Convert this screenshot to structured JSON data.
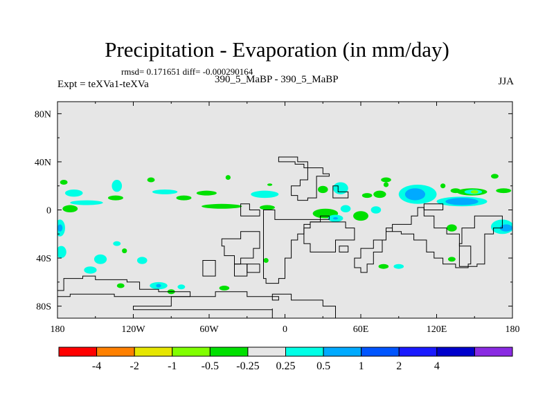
{
  "title": "Precipitation - Evaporation (in mm/day)",
  "stats_line": "rmsd= 0.171651 diff= -0.000290164",
  "experiment_label": "Expt = teXVa1-teXVa",
  "comparison_label": "390_5_MaBP - 390_5_MaBP",
  "season_label": "JJA",
  "chart_data": {
    "type": "map",
    "projection": "cylindrical-equidistant",
    "x_range_deg": [
      -180,
      180
    ],
    "y_range_deg": [
      -90,
      90
    ],
    "x_ticks": [
      {
        "value": -180,
        "label": "180"
      },
      {
        "value": -120,
        "label": "120W"
      },
      {
        "value": -60,
        "label": "60W"
      },
      {
        "value": 0,
        "label": "0"
      },
      {
        "value": 60,
        "label": "60E"
      },
      {
        "value": 120,
        "label": "120E"
      },
      {
        "value": 180,
        "label": "180"
      }
    ],
    "y_ticks": [
      {
        "value": 80,
        "label": "80N"
      },
      {
        "value": 40,
        "label": "40N"
      },
      {
        "value": 0,
        "label": "0"
      },
      {
        "value": -40,
        "label": "40S"
      },
      {
        "value": -80,
        "label": "80S"
      }
    ],
    "colorbar": {
      "colors": [
        "#ff0000",
        "#ff8000",
        "#e6e600",
        "#80ff00",
        "#00e000",
        "#e6e6e6",
        "#00ffe6",
        "#00aaff",
        "#0055ff",
        "#1a1aff",
        "#0000cc",
        "#8a2be2"
      ],
      "labels": [
        "-4",
        "-2",
        "-1",
        "-0.5",
        "-0.25",
        "0.25",
        "0.5",
        "1",
        "2",
        "4"
      ]
    },
    "filled_regions": [
      {
        "level": "-0.5..-0.25",
        "lon": -175,
        "lat": 23,
        "rx": 3,
        "ry": 2
      },
      {
        "level": "0.25..0.5",
        "lon": -167,
        "lat": 14,
        "rx": 7,
        "ry": 3
      },
      {
        "level": "0.25..0.5",
        "lon": -133,
        "lat": 20,
        "rx": 4,
        "ry": 5
      },
      {
        "level": "0.25..0.5",
        "lon": -95,
        "lat": 15,
        "rx": 10,
        "ry": 2
      },
      {
        "level": "0.25..0.5",
        "lon": -157,
        "lat": 6,
        "rx": 13,
        "ry": 2
      },
      {
        "level": "-0.5..-0.25",
        "lon": -134,
        "lat": 10,
        "rx": 6,
        "ry": 2
      },
      {
        "level": "-0.5..-0.25",
        "lon": -80,
        "lat": 10,
        "rx": 6,
        "ry": 2
      },
      {
        "level": "-0.5..-0.25",
        "lon": -62,
        "lat": 14,
        "rx": 8,
        "ry": 2
      },
      {
        "level": "-0.5..-0.25",
        "lon": -50,
        "lat": 3,
        "rx": 16,
        "ry": 2
      },
      {
        "level": "-0.5..-0.25",
        "lon": -14,
        "lat": 2,
        "rx": 6,
        "ry": 2
      },
      {
        "level": "0.25..0.5",
        "lon": -16,
        "lat": 13,
        "rx": 11,
        "ry": 3
      },
      {
        "level": "-0.5..-0.25",
        "lon": -170,
        "lat": 1,
        "rx": 6,
        "ry": 3
      },
      {
        "level": "-0.5..-0.25",
        "lon": -106,
        "lat": 25,
        "rx": 3,
        "ry": 2
      },
      {
        "level": "-0.5..-0.25",
        "lon": -45,
        "lat": 27,
        "rx": 2,
        "ry": 2
      },
      {
        "level": "-0.5..-0.25",
        "lon": -12,
        "lat": 21,
        "rx": 2,
        "ry": 1
      },
      {
        "level": "-0.5..-0.25",
        "lon": 32,
        "lat": -3,
        "rx": 10,
        "ry": 4
      },
      {
        "level": "0.25..0.5",
        "lon": 40,
        "lat": -7,
        "rx": 6,
        "ry": 3
      },
      {
        "level": "0.5..1",
        "lon": 40,
        "lat": -7,
        "rx": 2,
        "ry": 1
      },
      {
        "level": "0.25..0.5",
        "lon": 48,
        "lat": 1,
        "rx": 4,
        "ry": 3
      },
      {
        "level": "-0.5..-0.25",
        "lon": 30,
        "lat": 17,
        "rx": 4,
        "ry": 3
      },
      {
        "level": "0.25..0.5",
        "lon": 44,
        "lat": 18,
        "rx": 6,
        "ry": 5
      },
      {
        "level": "-0.5..-0.25",
        "lon": 60,
        "lat": -5,
        "rx": 6,
        "ry": 4
      },
      {
        "level": "-0.5..-0.25",
        "lon": 65,
        "lat": 12,
        "rx": 4,
        "ry": 2
      },
      {
        "level": "0.25..0.5",
        "lon": 72,
        "lat": 0,
        "rx": 4,
        "ry": 3
      },
      {
        "level": "-0.5..-0.25",
        "lon": 80,
        "lat": 25,
        "rx": 4,
        "ry": 2
      },
      {
        "level": "-0.5..-0.25",
        "lon": 75,
        "lat": 13,
        "rx": 5,
        "ry": 3
      },
      {
        "level": "0.25..0.5",
        "lon": 105,
        "lat": 13,
        "rx": 15,
        "ry": 8
      },
      {
        "level": "0.5..1",
        "lon": 103,
        "lat": 13,
        "rx": 8,
        "ry": 5
      },
      {
        "level": "0.25..0.5",
        "lon": 140,
        "lat": 7,
        "rx": 20,
        "ry": 4
      },
      {
        "level": "0.5..1",
        "lon": 140,
        "lat": 7,
        "rx": 13,
        "ry": 3
      },
      {
        "level": "-0.5..-0.25",
        "lon": 148,
        "lat": 15,
        "rx": 12,
        "ry": 3
      },
      {
        "level": "0.25..0.5",
        "lon": 149,
        "lat": 15,
        "rx": 7,
        "ry": 2
      },
      {
        "level": "-1..-0.5",
        "lon": 150,
        "lat": 15,
        "rx": 3,
        "ry": 1.5
      },
      {
        "level": "-0.5..-0.25",
        "lon": 135,
        "lat": 16,
        "rx": 4,
        "ry": 2
      },
      {
        "level": "-0.5..-0.25",
        "lon": 125,
        "lat": 20,
        "rx": 2,
        "ry": 2
      },
      {
        "level": "-0.5..-0.25",
        "lon": 173,
        "lat": 16,
        "rx": 6,
        "ry": 2
      },
      {
        "level": "-0.5..-0.25",
        "lon": 166,
        "lat": 28,
        "rx": 3,
        "ry": 2
      },
      {
        "level": "0.25..0.5",
        "lon": 172,
        "lat": -14,
        "rx": 9,
        "ry": 6
      },
      {
        "level": "0.5..1",
        "lon": 175,
        "lat": -15,
        "rx": 5,
        "ry": 3
      },
      {
        "level": "0.25..0.5",
        "lon": -178,
        "lat": -15,
        "rx": 4,
        "ry": 7
      },
      {
        "level": "0.5..1",
        "lon": -178,
        "lat": -15,
        "rx": 2,
        "ry": 3
      },
      {
        "level": "-0.5..-0.25",
        "lon": 132,
        "lat": -15,
        "rx": 4,
        "ry": 3
      },
      {
        "level": "0.25..0.5",
        "lon": -177,
        "lat": -35,
        "rx": 4,
        "ry": 5
      },
      {
        "level": "0.25..0.5",
        "lon": -113,
        "lat": -42,
        "rx": 4,
        "ry": 3
      },
      {
        "level": "0.25..0.5",
        "lon": -133,
        "lat": -28,
        "rx": 3,
        "ry": 2
      },
      {
        "level": "0.25..0.5",
        "lon": -146,
        "lat": -41,
        "rx": 5,
        "ry": 4
      },
      {
        "level": "0.25..0.5",
        "lon": -154,
        "lat": -50,
        "rx": 5,
        "ry": 3
      },
      {
        "level": "0.25..0.5",
        "lon": -100,
        "lat": -63,
        "rx": 7,
        "ry": 3
      },
      {
        "level": "0.5..1",
        "lon": -100,
        "lat": -63,
        "rx": 2,
        "ry": 1.5
      },
      {
        "level": "-0.5..-0.25",
        "lon": -90,
        "lat": -68,
        "rx": 3,
        "ry": 2
      },
      {
        "level": "0.25..0.5",
        "lon": -82,
        "lat": -64,
        "rx": 3,
        "ry": 2
      },
      {
        "level": "-0.5..-0.25",
        "lon": -130,
        "lat": -63,
        "rx": 3,
        "ry": 2
      },
      {
        "level": "-0.5..-0.25",
        "lon": -48,
        "lat": -65,
        "rx": 4,
        "ry": 2
      },
      {
        "level": "-0.5..-0.25",
        "lon": -15,
        "lat": -42,
        "rx": 2,
        "ry": 2
      },
      {
        "level": "-0.5..-0.25",
        "lon": 78,
        "lat": -47,
        "rx": 4,
        "ry": 2
      },
      {
        "level": "0.25..0.5",
        "lon": 90,
        "lat": -47,
        "rx": 4,
        "ry": 2
      },
      {
        "level": "-0.5..-0.25",
        "lon": 132,
        "lat": -41,
        "rx": 3,
        "ry": 2
      },
      {
        "level": "-0.5..-0.25",
        "lon": -127,
        "lat": -34,
        "rx": 2,
        "ry": 2
      },
      {
        "level": "-0.5..-0.25",
        "lon": 80,
        "lat": 21,
        "rx": 2,
        "ry": 2
      }
    ],
    "land_outlines": [
      [
        [
          -10,
          -82
        ],
        [
          -10,
          -90
        ],
        [
          40,
          -90
        ],
        [
          40,
          -80
        ],
        [
          30,
          -80
        ],
        [
          30,
          -75
        ],
        [
          5,
          -75
        ],
        [
          5,
          -70
        ],
        [
          -10,
          -70
        ],
        [
          -10,
          -72
        ],
        [
          -30,
          -72
        ],
        [
          -30,
          -68
        ],
        [
          -55,
          -68
        ],
        [
          -55,
          -72
        ],
        [
          -90,
          -72
        ],
        [
          -90,
          -80
        ],
        [
          -120,
          -80
        ],
        [
          -120,
          -83
        ],
        [
          -10,
          -83
        ]
      ],
      [
        [
          -180,
          -67
        ],
        [
          -175,
          -67
        ],
        [
          -175,
          -57
        ],
        [
          -160,
          -57
        ],
        [
          -160,
          -55
        ],
        [
          -150,
          -55
        ],
        [
          -150,
          -58
        ],
        [
          -125,
          -58
        ],
        [
          -125,
          -60
        ],
        [
          -115,
          -60
        ],
        [
          -115,
          -66
        ],
        [
          -100,
          -66
        ],
        [
          -100,
          -68
        ],
        [
          -75,
          -68
        ],
        [
          -75,
          -72
        ],
        [
          -135,
          -72
        ],
        [
          -135,
          -70
        ],
        [
          -170,
          -70
        ],
        [
          -170,
          -72
        ],
        [
          -180,
          -72
        ]
      ],
      [
        [
          -17,
          -3
        ],
        [
          -17,
          -57
        ],
        [
          -15,
          -57
        ],
        [
          -15,
          -61
        ],
        [
          -5,
          -61
        ],
        [
          -5,
          -57
        ],
        [
          0,
          -57
        ],
        [
          0,
          -40
        ],
        [
          5,
          -40
        ],
        [
          5,
          -25
        ],
        [
          10,
          -25
        ],
        [
          10,
          -20
        ],
        [
          15,
          -20
        ],
        [
          15,
          -12
        ],
        [
          20,
          -12
        ],
        [
          20,
          -10
        ],
        [
          28,
          -10
        ],
        [
          28,
          -5
        ],
        [
          35,
          -5
        ],
        [
          35,
          -8
        ],
        [
          -8,
          -8
        ],
        [
          -8,
          0
        ],
        [
          -17,
          0
        ]
      ],
      [
        [
          -35,
          -18
        ],
        [
          -35,
          -24
        ],
        [
          -50,
          -24
        ],
        [
          -50,
          -30
        ],
        [
          -48,
          -30
        ],
        [
          -48,
          -38
        ],
        [
          -40,
          -38
        ],
        [
          -40,
          -45
        ],
        [
          -35,
          -45
        ],
        [
          -35,
          -40
        ],
        [
          -25,
          -40
        ],
        [
          -25,
          -32
        ],
        [
          -20,
          -32
        ],
        [
          -20,
          -18
        ]
      ],
      [
        [
          -28,
          5
        ],
        [
          -28,
          0
        ],
        [
          -20,
          0
        ],
        [
          -20,
          -5
        ],
        [
          -35,
          -5
        ],
        [
          -35,
          5
        ]
      ],
      [
        [
          -5,
          44
        ],
        [
          -5,
          40
        ],
        [
          8,
          40
        ],
        [
          8,
          38
        ],
        [
          15,
          38
        ],
        [
          15,
          35
        ],
        [
          30,
          35
        ],
        [
          30,
          30
        ],
        [
          35,
          30
        ],
        [
          35,
          28
        ],
        [
          25,
          28
        ],
        [
          25,
          10
        ],
        [
          18,
          10
        ],
        [
          18,
          8
        ],
        [
          10,
          8
        ],
        [
          10,
          12
        ],
        [
          5,
          12
        ],
        [
          5,
          20
        ],
        [
          12,
          20
        ],
        [
          12,
          25
        ],
        [
          18,
          25
        ],
        [
          18,
          40
        ],
        [
          10,
          40
        ],
        [
          10,
          44
        ]
      ],
      [
        [
          20,
          -10
        ],
        [
          20,
          -15
        ],
        [
          15,
          -15
        ],
        [
          15,
          -28
        ],
        [
          20,
          -28
        ],
        [
          20,
          -35
        ],
        [
          40,
          -35
        ],
        [
          40,
          -25
        ],
        [
          55,
          -25
        ],
        [
          55,
          -15
        ],
        [
          48,
          -15
        ],
        [
          48,
          -10
        ]
      ],
      [
        [
          38,
          20
        ],
        [
          38,
          10
        ],
        [
          50,
          10
        ],
        [
          50,
          15
        ],
        [
          42,
          15
        ],
        [
          42,
          20
        ]
      ],
      [
        [
          -30,
          -45
        ],
        [
          -30,
          -52
        ],
        [
          -20,
          -52
        ],
        [
          -20,
          -45
        ]
      ],
      [
        [
          -10,
          -75
        ],
        [
          -10,
          -72
        ],
        [
          -5,
          -72
        ],
        [
          -5,
          -75
        ]
      ],
      [
        [
          43,
          -30
        ],
        [
          43,
          -35
        ],
        [
          50,
          -35
        ],
        [
          50,
          -30
        ]
      ],
      [
        [
          -65,
          -42
        ],
        [
          -65,
          -55
        ],
        [
          -55,
          -55
        ],
        [
          -55,
          -42
        ]
      ],
      [
        [
          -40,
          -45
        ],
        [
          -40,
          -55
        ],
        [
          -30,
          -55
        ],
        [
          -30,
          -45
        ]
      ],
      [
        [
          110,
          2
        ],
        [
          110,
          -5
        ],
        [
          118,
          -5
        ],
        [
          118,
          -15
        ],
        [
          128,
          -15
        ],
        [
          128,
          -20
        ],
        [
          138,
          -20
        ],
        [
          138,
          -30
        ],
        [
          147,
          -30
        ],
        [
          147,
          -45
        ],
        [
          145,
          -45
        ],
        [
          145,
          -48
        ],
        [
          135,
          -48
        ],
        [
          135,
          -45
        ],
        [
          125,
          -45
        ],
        [
          125,
          -40
        ],
        [
          118,
          -40
        ],
        [
          118,
          -35
        ],
        [
          112,
          -35
        ],
        [
          112,
          -25
        ],
        [
          102,
          -25
        ],
        [
          102,
          -20
        ],
        [
          92,
          -20
        ],
        [
          92,
          -18
        ],
        [
          85,
          -18
        ],
        [
          85,
          -15
        ],
        [
          80,
          -15
        ],
        [
          80,
          -25
        ],
        [
          77,
          -25
        ],
        [
          77,
          -35
        ],
        [
          70,
          -35
        ],
        [
          70,
          -45
        ],
        [
          65,
          -45
        ],
        [
          65,
          -52
        ],
        [
          60,
          -52
        ],
        [
          60,
          -48
        ],
        [
          55,
          -48
        ],
        [
          55,
          -40
        ],
        [
          60,
          -40
        ],
        [
          60,
          -32
        ],
        [
          70,
          -32
        ],
        [
          70,
          -25
        ],
        [
          80,
          -25
        ],
        [
          80,
          -18
        ],
        [
          85,
          -18
        ],
        [
          85,
          -12
        ],
        [
          100,
          -12
        ],
        [
          100,
          -5
        ],
        [
          105,
          -5
        ],
        [
          105,
          2
        ]
      ],
      [
        [
          150,
          -5
        ],
        [
          150,
          -15
        ],
        [
          140,
          -15
        ],
        [
          140,
          -28
        ],
        [
          138,
          -28
        ],
        [
          138,
          -47
        ],
        [
          152,
          -47
        ],
        [
          152,
          -45
        ],
        [
          158,
          -45
        ],
        [
          158,
          -20
        ],
        [
          165,
          -20
        ],
        [
          165,
          -15
        ],
        [
          172,
          -15
        ],
        [
          172,
          -5
        ]
      ],
      [
        [
          110,
          5
        ],
        [
          110,
          0
        ],
        [
          125,
          0
        ],
        [
          125,
          5
        ]
      ]
    ]
  }
}
